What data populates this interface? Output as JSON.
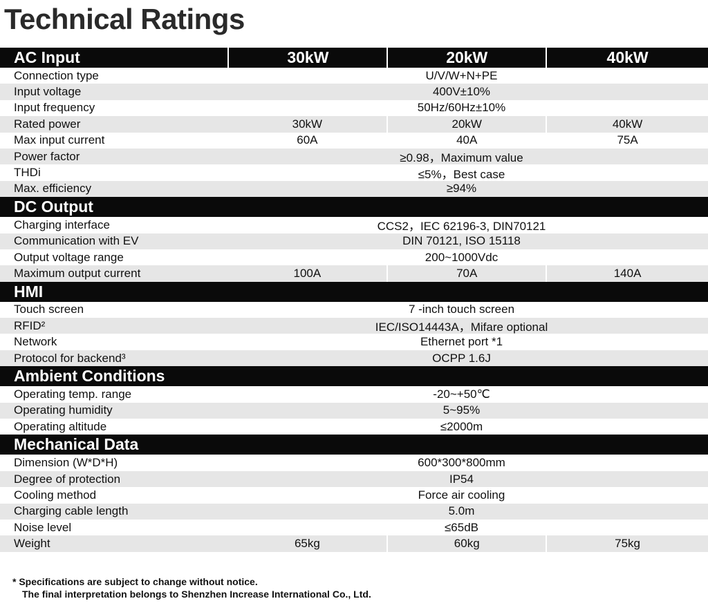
{
  "title": "Technical Ratings",
  "sections": [
    {
      "header": "AC Input",
      "columns": [
        "30kW",
        "20kW",
        "40kW"
      ],
      "rows": [
        {
          "label": "Connection type",
          "value": "U/V/W+N+PE"
        },
        {
          "label": "Input voltage",
          "value": "400V±10%"
        },
        {
          "label": "Input frequency",
          "value": "50Hz/60Hz±10%"
        },
        {
          "label": "Rated power",
          "values": [
            "30kW",
            "20kW",
            "40kW"
          ]
        },
        {
          "label": "Max input current",
          "values": [
            "60A",
            "40A",
            "75A"
          ]
        },
        {
          "label": "Power factor",
          "value": "≥0.98，Maximum value"
        },
        {
          "label": "THDi",
          "value": "≤5%，Best case"
        },
        {
          "label": "Max. efficiency",
          "value": "≥94%"
        }
      ]
    },
    {
      "header": "DC Output",
      "rows": [
        {
          "label": "Charging interface",
          "value": "CCS2，IEC 62196-3, DIN70121"
        },
        {
          "label": "Communication with EV",
          "value": "DIN 70121, ISO 15118"
        },
        {
          "label": "Output voltage range",
          "value": "200~1000Vdc"
        },
        {
          "label": "Maximum output current",
          "values": [
            "100A",
            "70A",
            "140A"
          ]
        }
      ]
    },
    {
      "header": "HMI",
      "rows": [
        {
          "label": "Touch screen",
          "value": "7 -inch touch screen"
        },
        {
          "label": "RFID²",
          "value": "IEC/ISO14443A，Mifare  optional"
        },
        {
          "label": "Network",
          "value": "Ethernet port *1"
        },
        {
          "label": "Protocol for backend³",
          "value": "OCPP 1.6J"
        }
      ]
    },
    {
      "header": "Ambient Conditions",
      "rows": [
        {
          "label": "Operating temp. range",
          "value": "-20~+50℃"
        },
        {
          "label": "Operating humidity",
          "value": "5~95%"
        },
        {
          "label": "Operating altitude",
          "value": "≤2000m"
        }
      ]
    },
    {
      "header": "Mechanical Data",
      "rows": [
        {
          "label": "Dimension (W*D*H)",
          "value": "600*300*800mm"
        },
        {
          "label": "Degree of protection",
          "value": "IP54"
        },
        {
          "label": "Cooling method",
          "value": "Force air cooling"
        },
        {
          "label": "Charging cable length",
          "value": "5.0m"
        },
        {
          "label": "Noise level",
          "value": "≤65dB"
        },
        {
          "label": "Weight",
          "values": [
            "65kg",
            "60kg",
            "75kg"
          ]
        }
      ]
    }
  ],
  "footnote": {
    "line1": "* Specifications are subject to change without notice.",
    "line2": "The final interpretation belongs to Shenzhen Increase International Co., Ltd."
  }
}
